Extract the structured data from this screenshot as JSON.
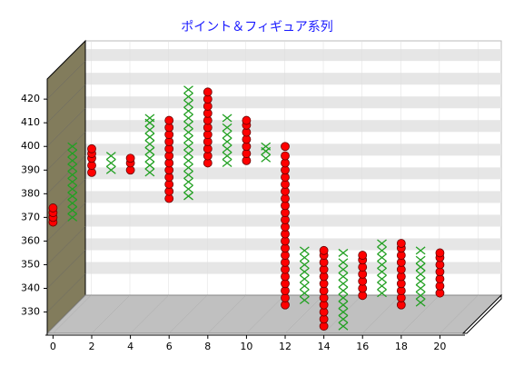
{
  "chart_data": {
    "type": "scatter",
    "title": "ポイント＆フィギュア系列",
    "xlim": [
      -0.3,
      21.2
    ],
    "xticks": [
      0,
      2,
      4,
      6,
      8,
      10,
      12,
      14,
      16,
      18,
      20
    ],
    "ylim": [
      321,
      428.5
    ],
    "yticks": [
      330,
      340,
      350,
      360,
      370,
      380,
      390,
      400,
      410,
      420
    ],
    "grid": true,
    "series": [
      {
        "color": "#ff0000",
        "marker": "circle",
        "x": [
          0,
          0,
          0,
          0,
          2,
          2,
          2,
          2,
          2,
          4,
          4,
          4,
          6,
          6,
          6,
          6,
          6,
          6,
          6,
          6,
          6,
          6,
          6,
          6,
          8,
          8,
          8,
          8,
          8,
          8,
          8,
          8,
          8,
          8,
          8,
          10,
          10,
          10,
          10,
          10,
          10,
          10,
          12,
          12,
          12,
          12,
          12,
          12,
          12,
          12,
          12,
          12,
          12,
          12,
          12,
          12,
          12,
          12,
          12,
          12,
          12,
          12,
          12,
          12,
          12,
          14,
          14,
          14,
          14,
          14,
          14,
          14,
          14,
          14,
          14,
          14,
          14,
          16,
          16,
          16,
          16,
          16,
          16,
          16,
          18,
          18,
          18,
          18,
          18,
          18,
          18,
          18,
          18,
          18,
          20,
          20,
          20,
          20,
          20,
          20,
          20
        ],
        "values": [
          368,
          370,
          372,
          374,
          389,
          392,
          395,
          397,
          399,
          390,
          393,
          395,
          378,
          381,
          384,
          387,
          390,
          393,
          396,
          399,
          402,
          405,
          408,
          411,
          393,
          396,
          399,
          402,
          405,
          408,
          411,
          414,
          417,
          420,
          423,
          394,
          397,
          400,
          403,
          406,
          409,
          411,
          333,
          336,
          339,
          342,
          345,
          348,
          351,
          354,
          357,
          360,
          363,
          366,
          369,
          372,
          375,
          378,
          381,
          384,
          387,
          390,
          393,
          396,
          400,
          324,
          327,
          330,
          333,
          336,
          339,
          342,
          345,
          348,
          351,
          354,
          356,
          337,
          340,
          343,
          346,
          349,
          352,
          354,
          333,
          336,
          339,
          342,
          345,
          348,
          351,
          354,
          357,
          359,
          338,
          341,
          344,
          347,
          350,
          353,
          355
        ]
      },
      {
        "color": "#22a022",
        "marker": "cross",
        "x": [
          1,
          1,
          1,
          1,
          1,
          1,
          1,
          1,
          1,
          1,
          1,
          3,
          3,
          3,
          5,
          5,
          5,
          5,
          5,
          5,
          5,
          5,
          5,
          7,
          7,
          7,
          7,
          7,
          7,
          7,
          7,
          7,
          7,
          7,
          7,
          7,
          7,
          7,
          7,
          9,
          9,
          9,
          9,
          9,
          9,
          9,
          11,
          11,
          11,
          13,
          13,
          13,
          13,
          13,
          13,
          13,
          13,
          15,
          15,
          15,
          15,
          15,
          15,
          15,
          15,
          15,
          15,
          15,
          17,
          17,
          17,
          17,
          17,
          17,
          17,
          17,
          19,
          19,
          19,
          19,
          19,
          19,
          19,
          19
        ],
        "values": [
          370,
          373,
          376,
          379,
          382,
          385,
          388,
          391,
          394,
          397,
          400,
          390,
          393,
          396,
          389,
          392,
          395,
          398,
          401,
          404,
          407,
          410,
          412,
          379,
          382,
          385,
          388,
          391,
          394,
          397,
          400,
          403,
          406,
          409,
          412,
          415,
          418,
          421,
          424,
          393,
          396,
          399,
          402,
          405,
          408,
          412,
          395,
          398,
          400,
          335,
          338,
          341,
          344,
          347,
          350,
          353,
          356,
          324,
          327,
          330,
          333,
          336,
          339,
          342,
          345,
          348,
          351,
          355,
          338,
          341,
          344,
          347,
          350,
          353,
          356,
          359,
          334,
          337,
          340,
          343,
          346,
          349,
          352,
          356
        ]
      }
    ]
  }
}
